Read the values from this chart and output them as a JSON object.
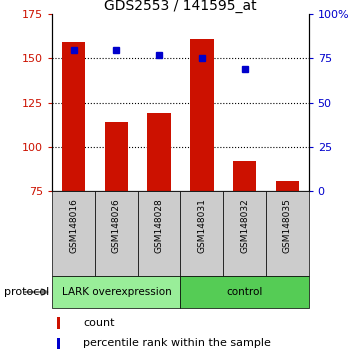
{
  "title": "GDS2553 / 141595_at",
  "samples": [
    "GSM148016",
    "GSM148026",
    "GSM148028",
    "GSM148031",
    "GSM148032",
    "GSM148035"
  ],
  "bar_values": [
    159,
    114,
    119,
    161,
    92,
    81
  ],
  "bar_bottom": 75,
  "percentile_values": [
    80,
    80,
    77,
    75,
    69,
    null
  ],
  "bar_color": "#cc1100",
  "dot_color": "#0000cc",
  "ylim_left": [
    75,
    175
  ],
  "ylim_right": [
    0,
    100
  ],
  "yticks_left": [
    75,
    100,
    125,
    150,
    175
  ],
  "ytick_labels_left": [
    "75",
    "100",
    "125",
    "150",
    "175"
  ],
  "yticks_right": [
    0,
    25,
    50,
    75,
    100
  ],
  "ytick_labels_right": [
    "0",
    "25",
    "50",
    "75",
    "100%"
  ],
  "hlines": [
    100,
    125,
    150
  ],
  "group1_label": "LARK overexpression",
  "group2_label": "control",
  "group1_color": "#99ee99",
  "group2_color": "#55cc55",
  "protocol_label": "protocol",
  "sample_bg_color": "#cccccc",
  "legend_count_label": "count",
  "legend_pct_label": "percentile rank within the sample",
  "bar_width": 0.55,
  "figsize": [
    3.61,
    3.54
  ],
  "dpi": 100
}
